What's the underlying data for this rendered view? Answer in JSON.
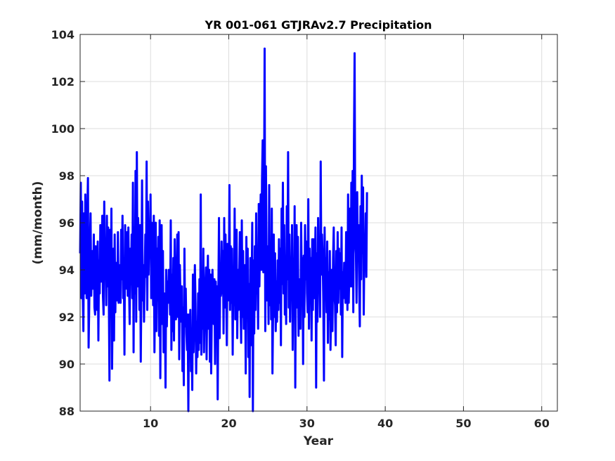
{
  "chart_data": {
    "type": "line",
    "title": "YR 001-061 GTJRAv2.7 Precipitation",
    "xlabel": "Year",
    "ylabel": "(mm/month)",
    "xlim": [
      1,
      62
    ],
    "ylim": [
      88,
      104
    ],
    "xticks": [
      10,
      20,
      30,
      40,
      50,
      60
    ],
    "yticks": [
      88,
      90,
      92,
      94,
      96,
      98,
      100,
      102,
      104
    ],
    "grid": true,
    "line_color": "#0000ff",
    "series": [
      {
        "points_per_year": 12,
        "x_start": 1,
        "values": [
          94.7,
          97.7,
          92.8,
          96.9,
          93.1,
          91.4,
          96.4,
          93.0,
          97.2,
          94.2,
          92.8,
          96.3,
          97.9,
          90.7,
          92.6,
          95.1,
          96.4,
          92.9,
          94.0,
          94.8,
          93.2,
          95.5,
          92.4,
          92.1,
          95.0,
          93.8,
          92.3,
          95.2,
          91.0,
          94.4,
          93.0,
          95.9,
          93.5,
          94.3,
          96.3,
          92.9,
          92.1,
          96.9,
          93.9,
          94.9,
          92.5,
          96.3,
          93.3,
          95.8,
          93.1,
          89.3,
          95.7,
          92.0,
          96.6,
          89.8,
          93.0,
          94.9,
          91.0,
          95.5,
          92.2,
          94.3,
          93.6,
          92.7,
          95.6,
          92.6,
          94.2,
          93.0,
          92.6,
          95.7,
          93.6,
          96.3,
          92.8,
          94.5,
          90.4,
          95.9,
          93.2,
          94.8,
          95.6,
          92.9,
          95.8,
          93.4,
          91.7,
          94.9,
          93.4,
          95.5,
          92.8,
          97.7,
          90.5,
          95.8,
          93.0,
          98.2,
          91.8,
          99.0,
          93.3,
          96.2,
          94.8,
          92.3,
          95.9,
          90.1,
          93.5,
          97.8,
          92.7,
          94.2,
          91.8,
          93.5,
          95.5,
          93.7,
          98.6,
          92.3,
          96.9,
          93.8,
          95.7,
          95.0,
          97.2,
          92.8,
          96.0,
          94.6,
          92.5,
          96.3,
          90.5,
          93.5,
          96.0,
          91.4,
          94.9,
          92.7,
          95.4,
          91.2,
          96.1,
          89.4,
          93.5,
          95.9,
          91.7,
          94.8,
          90.5,
          93.0,
          92.9,
          89.0,
          94.0,
          91.6,
          93.5,
          92.6,
          94.0,
          93.9,
          92.1,
          96.1,
          90.6,
          93.8,
          91.4,
          94.5,
          91.0,
          95.3,
          93.1,
          91.9,
          93.1,
          95.5,
          92.0,
          95.6,
          90.2,
          94.2,
          92.6,
          91.8,
          93.3,
          89.7,
          92.4,
          89.1,
          94.9,
          91.6,
          93.2,
          91.3,
          90.6,
          92.1,
          88.0,
          92.1,
          90.9,
          92.3,
          89.7,
          91.0,
          88.9,
          93.8,
          90.5,
          92.1,
          94.2,
          92.6,
          89.6,
          91.8,
          90.3,
          93.0,
          90.6,
          93.6,
          90.9,
          97.2,
          90.4,
          93.5,
          91.5,
          94.9,
          90.5,
          92.5,
          93.2,
          94.1,
          90.2,
          92.8,
          94.6,
          91.5,
          94.0,
          90.1,
          93.8,
          89.6,
          92.3,
          94.0,
          92.6,
          91.7,
          93.6,
          90.0,
          93.5,
          91.6,
          93.3,
          88.5,
          92.9,
          96.2,
          91.1,
          94.0,
          92.9,
          95.2,
          93.0,
          94.8,
          91.3,
          96.2,
          92.4,
          95.5,
          93.2,
          90.8,
          95.1,
          92.7,
          93.1,
          97.6,
          92.3,
          95.0,
          92.6,
          94.9,
          90.4,
          93.9,
          92.5,
          96.6,
          91.9,
          92.8,
          95.7,
          91.1,
          94.0,
          92.3,
          93.6,
          95.6,
          92.7,
          90.9,
          96.1,
          92.0,
          94.8,
          91.5,
          93.3,
          94.2,
          89.6,
          95.4,
          92.0,
          94.9,
          90.3,
          93.4,
          88.6,
          94.5,
          90.8,
          92.8,
          96.0,
          88.0,
          94.4,
          91.3,
          95.0,
          92.3,
          96.4,
          93.0,
          94.2,
          91.5,
          96.8,
          93.3,
          95.5,
          97.2,
          94.0,
          97.8,
          99.5,
          93.9,
          96.2,
          103.4,
          91.4,
          98.4,
          94.5,
          92.7,
          95.0,
          91.7,
          97.6,
          92.5,
          94.5,
          91.9,
          96.6,
          89.6,
          92.3,
          95.5,
          92.0,
          94.7,
          91.4,
          93.5,
          91.8,
          94.4,
          92.3,
          95.3,
          92.6,
          94.9,
          90.8,
          96.6,
          93.4,
          97.7,
          93.0,
          95.9,
          92.1,
          94.4,
          91.7,
          96.7,
          93.6,
          99.0,
          92.4,
          95.5,
          91.8,
          94.2,
          93.1,
          95.9,
          90.6,
          94.4,
          92.2,
          96.7,
          89.0,
          94.1,
          95.9,
          92.4,
          95.4,
          91.2,
          93.6,
          92.5,
          91.5,
          96.0,
          93.4,
          94.5,
          90.0,
          94.6,
          92.0,
          95.9,
          93.6,
          95.2,
          93.0,
          92.2,
          97.0,
          91.5,
          94.9,
          92.7,
          94.5,
          91.0,
          95.3,
          92.3,
          95.3,
          92.8,
          93.8,
          95.8,
          89.0,
          94.7,
          91.8,
          96.2,
          93.4,
          94.0,
          92.0,
          98.6,
          93.8,
          95.5,
          94.5,
          92.7,
          89.3,
          95.8,
          93.1,
          94.5,
          92.2,
          95.2,
          90.9,
          93.9,
          91.9,
          94.8,
          90.6,
          92.3,
          94.0,
          91.4,
          94.5,
          95.8,
          93.0,
          92.5,
          90.8,
          94.8,
          92.2,
          95.6,
          92.6,
          94.9,
          93.2,
          94.7,
          92.1,
          95.8,
          90.3,
          93.9,
          92.8,
          94.3,
          93.6,
          92.6,
          95.6,
          94.8,
          92.3,
          97.2,
          92.6,
          94.1,
          96.6,
          93.3,
          97.7,
          93.3,
          98.2,
          92.2,
          99.3,
          103.2,
          95.2,
          94.7,
          92.6,
          97.3,
          94.5,
          95.9,
          93.4,
          91.6,
          96.7,
          93.6,
          98.0,
          94.7,
          97.5,
          92.1,
          95.0,
          94.2,
          96.4,
          93.7,
          97.3
        ]
      }
    ]
  }
}
